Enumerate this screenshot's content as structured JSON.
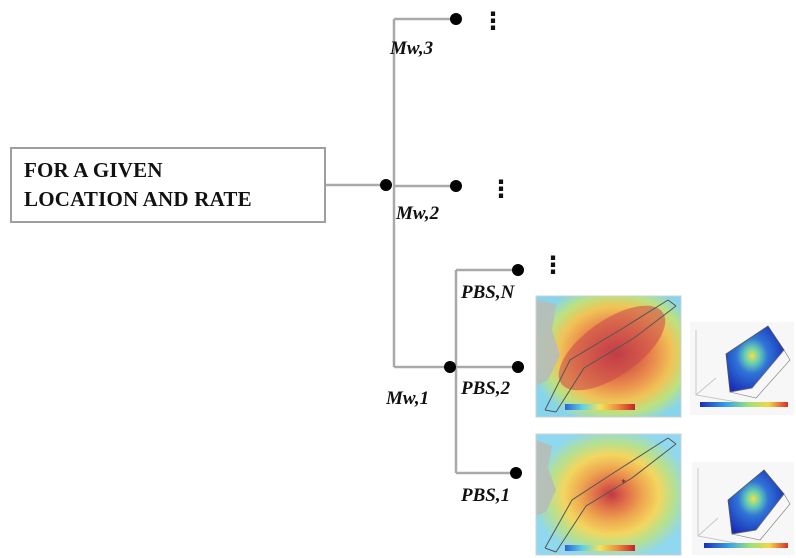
{
  "root": {
    "line1": "FOR A GIVEN",
    "line2": "LOCATION AND RATE"
  },
  "magnitude_labels": {
    "mw3": "Mw,3",
    "mw2": "Mw,2",
    "mw1": "Mw,1"
  },
  "pbs_labels": {
    "pbsN": "PBS,N",
    "pbs2": "PBS,2",
    "pbs1": "PBS,1"
  },
  "continuation_symbol": "⋮",
  "colors": {
    "line": "#a9a9a9",
    "node": "#000000",
    "box_border": "#9e9e9e",
    "map_low": "#7fd3f0",
    "map_mid": "#f2c14a",
    "map_high": "#c8303a",
    "slip_high": "#1a2fb8"
  },
  "thumbnails": [
    {
      "kind": "intensity-map",
      "label": "PBS,2 intensity map"
    },
    {
      "kind": "slip-distribution",
      "label": "PBS,2 slip distribution"
    },
    {
      "kind": "intensity-map",
      "label": "PBS,1 intensity map"
    },
    {
      "kind": "slip-distribution",
      "label": "PBS,1 slip distribution"
    }
  ]
}
